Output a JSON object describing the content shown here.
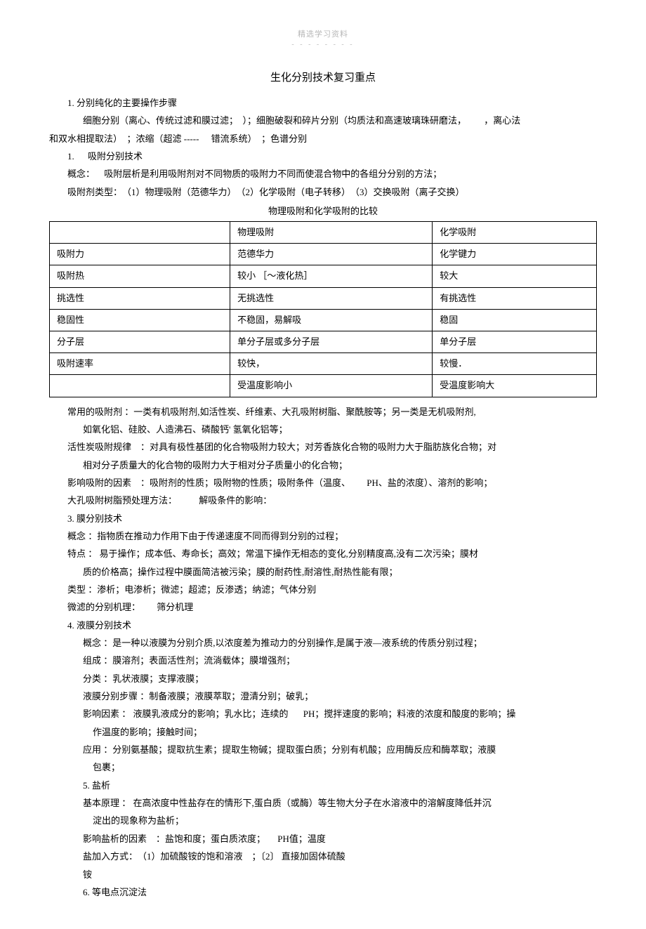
{
  "header": {
    "watermark": "精选学习资料",
    "dashes": "- - - - - - - -"
  },
  "title": "生化分别技术复习重点",
  "p1": "1. 分别纯化的主要操作步骤",
  "p2_a": "细胞分别（离心、传统过滤和膜过滤；　）；细胞破裂和碎片分别（均质法和高速玻璃珠研磨法，",
  "p2_b": "，离心法",
  "p3_a": "和双水相提取法）　；浓缩（超滤 -----",
  "p3_b": "错流系统）　；色谱分别",
  "p4_a": "1.",
  "p4_b": "吸附分别技术",
  "p5_a": "概念：",
  "p5_b": "吸附层析是利用吸附剂对不同物质的吸附力不同而使混合物中的各组分分别的方法；",
  "p6": "吸附剂类型：　（1）物理吸附（范德华力）　（2）化学吸附（电子转移）　（3）交换吸附（离子交换）",
  "table_caption": "物理吸附和化学吸附的比较",
  "table": {
    "rows": [
      [
        "",
        "物理吸附",
        "化学吸附"
      ],
      [
        "吸附力",
        "范德华力",
        "化学键力"
      ],
      [
        "吸附热",
        "较小 ［～液化热］",
        "较大"
      ],
      [
        "挑选性",
        "无挑选性",
        "有挑选性"
      ],
      [
        "稳固性",
        "不稳固，易解吸",
        "稳固"
      ],
      [
        "分子层",
        "单分子层或多分子层",
        "单分子层"
      ],
      [
        "吸附速率",
        "较快，",
        "较慢．"
      ],
      [
        "",
        "受温度影响小",
        "受温度影响大"
      ]
    ],
    "col_widths": [
      "33%",
      "37%",
      "30%"
    ]
  },
  "p7": "常用的吸附剂 ：一类有机吸附剂,如活性炭、纤维素、大孔吸附树脂、聚酰胺等；另一类是无机吸附剂,",
  "p7b": "如氧化铝、硅胶、人造沸石、磷酸钙' 氢氧化铝等；",
  "p8": "活性炭吸附规律　：对具有极性基团的化合物吸附力较大；对芳香族化合物的吸附力大于脂肪族化合物；对",
  "p8b": "相对分子质量大的化合物的吸附力大于相对分子质量小的化合物；",
  "p9_a": "影响吸附的因素　：吸附剂的性质；吸附物的性质；吸附条件（温度、",
  "p9_b": "PH、盐的浓度）、溶剂的影响；",
  "p10_a": "大孔吸附树脂预处理方法：",
  "p10_b": "解吸条件的影响：",
  "p11": "3. 膜分别技术",
  "p12": "概念 ：指物质在推动力作用下由于传递速度不同而得到分别的过程；",
  "p13": "特点 ： 易于操作；成本低、寿命长；高效；常温下操作无相态的变化,分别精度高,没有二次污染；膜材",
  "p13b": "质的价格高；操作过程中膜面简洁被污染；膜的耐药性,耐溶性,耐热性能有限；",
  "p14": "类型 ：渗析；电渗析；微滤；超滤；反渗透；纳滤；气体分别",
  "p15_a": "微滤的分别机理：",
  "p15_b": "筛分机理",
  "p16": "4. 液膜分别技术",
  "p17": "概念 ：是一种以液膜为分别介质,以浓度差为推动力的分别操作,是属于液—液系统的传质分别过程；",
  "p18": "组成 ：膜溶剂；表面活性剂；流淌载体；膜增强剂；",
  "p19": "分类 ：乳状液膜；支撑液膜；",
  "p20": "液膜分别步骤 ：制备液膜；液膜萃取；澄清分别；破乳；",
  "p21_a": "影响因素 ： 液膜乳液成分的影响；乳水比；连续的",
  "p21_b": "PH；搅拌速度的影响；料液的浓度和酸度的影响；操",
  "p21c": "作温度的影响；接触时间；",
  "p22": "应用 ：分别氨基酸；提取抗生素；提取生物碱；提取蛋白质；分别有机酸；应用酶反应和酶萃取；液膜",
  "p22b": "包裹；",
  "p23": "5. 盐析",
  "p24": "基本原理 ： 在高浓度中性盐存在的情形下,蛋白质（或酶）等生物大分子在水溶液中的溶解度降低并沉",
  "p24b": "淀出的现象称为盐析；",
  "p25_a": "影响盐析的因素　：盐饱和度；蛋白质浓度；",
  "p25_b": "PH值；温度",
  "p26": "盐加入方式：　（1）加硫酸铵的饱和溶液　；〔2〕 直接加固体硫酸",
  "p27": "铵",
  "p28": "6. 等电点沉淀法"
}
